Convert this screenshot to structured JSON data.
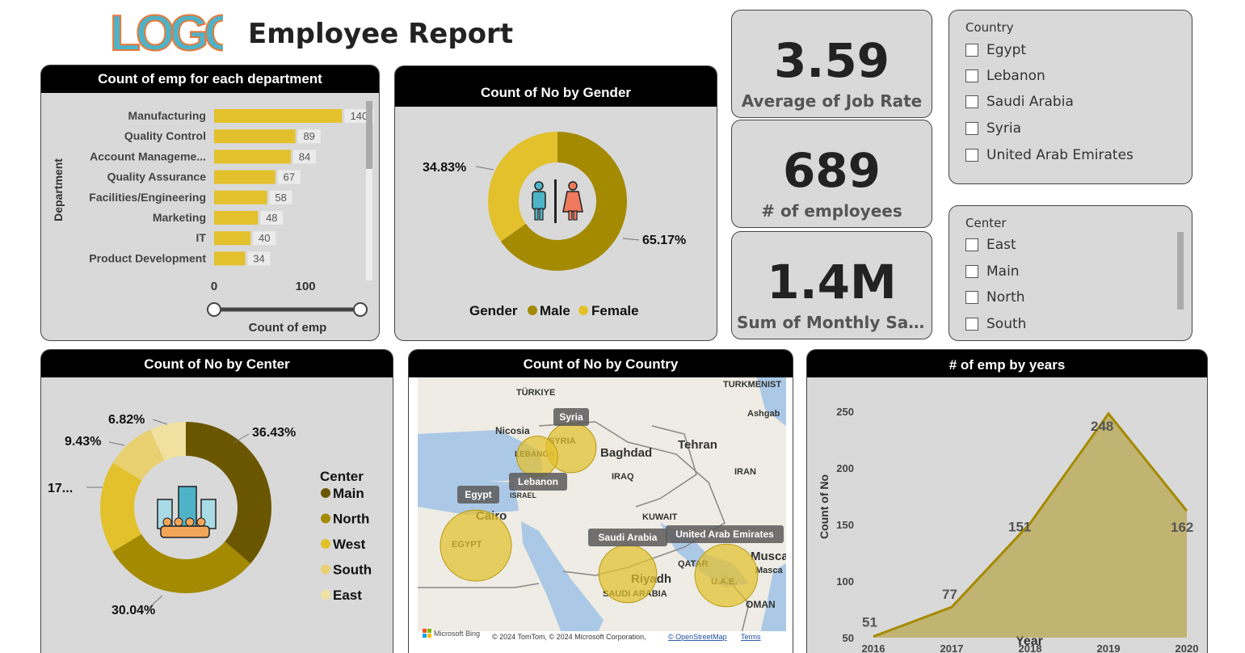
{
  "header": {
    "logo_text": "LOGO",
    "title": "Employee Report"
  },
  "colors": {
    "gold": "#e3c12d",
    "olive": "#a48a00",
    "dark": "#6b5600",
    "card": "#d9d9d9"
  },
  "kpis": [
    {
      "value": "3.59",
      "label": "Average of Job Rate"
    },
    {
      "value": "689",
      "label": "# of employees"
    },
    {
      "value": "1.4M",
      "label": "Sum of Monthly Sala..."
    }
  ],
  "country_slicer": {
    "title": "Country",
    "items": [
      "Egypt",
      "Lebanon",
      "Saudi Arabia",
      "Syria",
      "United Arab Emirates"
    ]
  },
  "center_slicer": {
    "title": "Center",
    "items": [
      "East",
      "Main",
      "North",
      "South"
    ]
  },
  "dept_chart": {
    "title": "Count of emp for each department",
    "ylabel": "Department",
    "xlabel": "Count of emp",
    "tick_labels": [
      "0",
      "100"
    ],
    "max": 160
  },
  "gender_chart": {
    "title": "Count of No by Gender",
    "legend_title": "Gender"
  },
  "center_chart": {
    "title": "Count of No by Center",
    "legend_title": "Center"
  },
  "map_chart": {
    "title": "Count of No by Country",
    "bubbles": [
      "Syria",
      "Lebanon",
      "Egypt",
      "Saudi Arabia",
      "United Arab Emirates"
    ],
    "place_labels": [
      "TÜRKIYE",
      "TURKMENIST",
      "Ashgab",
      "Nicosia",
      "SYRIA",
      "LEBANON",
      "ISRAEL",
      "Baghdad",
      "Tehran",
      "IRAQ",
      "IRAN",
      "Cairo",
      "KUWAIT",
      "EGYPT",
      "QATAR",
      "Riyadh",
      "SAUDI ARABIA",
      "U.A.E.",
      "Musca",
      "Masca",
      "OMAN"
    ],
    "attribution": "© 2024 TomTom, © 2024 Microsoft Corporation,",
    "osm": "© OpenStreetMap",
    "terms": "Terms",
    "bing": "Microsoft Bing"
  },
  "years_chart": {
    "title": "# of emp by years",
    "xlabel": "Year",
    "ylabel": "Count of No",
    "y_ticks": [
      250,
      200,
      150,
      100,
      50
    ]
  },
  "chart_data": [
    {
      "type": "bar",
      "title": "Count of emp for each department",
      "categories": [
        "Manufacturing",
        "Quality Control",
        "Account Manageme...",
        "Quality Assurance",
        "Facilities/Engineering",
        "Marketing",
        "IT",
        "Product Development"
      ],
      "values": [
        140,
        89,
        84,
        67,
        58,
        48,
        40,
        34
      ],
      "xlabel": "Count of emp",
      "ylabel": "Department"
    },
    {
      "type": "pie",
      "title": "Count of No by Gender",
      "categories": [
        "Male",
        "Female"
      ],
      "values": [
        65.17,
        34.83
      ],
      "labels": [
        "65.17%",
        "34.83%"
      ]
    },
    {
      "type": "pie",
      "title": "Count of No by Center",
      "categories": [
        "Main",
        "North",
        "West",
        "South",
        "East"
      ],
      "values": [
        36.43,
        30.04,
        17.4,
        9.43,
        6.82
      ],
      "labels": [
        "36.43%",
        "30.04%",
        "17...",
        "9.43%",
        "6.82%"
      ]
    },
    {
      "type": "scatter",
      "title": "Count of No by Country",
      "categories": [
        "Syria",
        "Lebanon",
        "Egypt",
        "Saudi Arabia",
        "United Arab Emirates"
      ],
      "values": [
        70,
        35,
        200,
        110,
        140
      ]
    },
    {
      "type": "area",
      "title": "# of emp by years",
      "x": [
        "2016",
        "2017",
        "2018",
        "2019",
        "2020"
      ],
      "values": [
        51,
        77,
        151,
        248,
        162
      ],
      "xlabel": "Year",
      "ylabel": "Count of No",
      "ylim": [
        50,
        250
      ]
    }
  ]
}
